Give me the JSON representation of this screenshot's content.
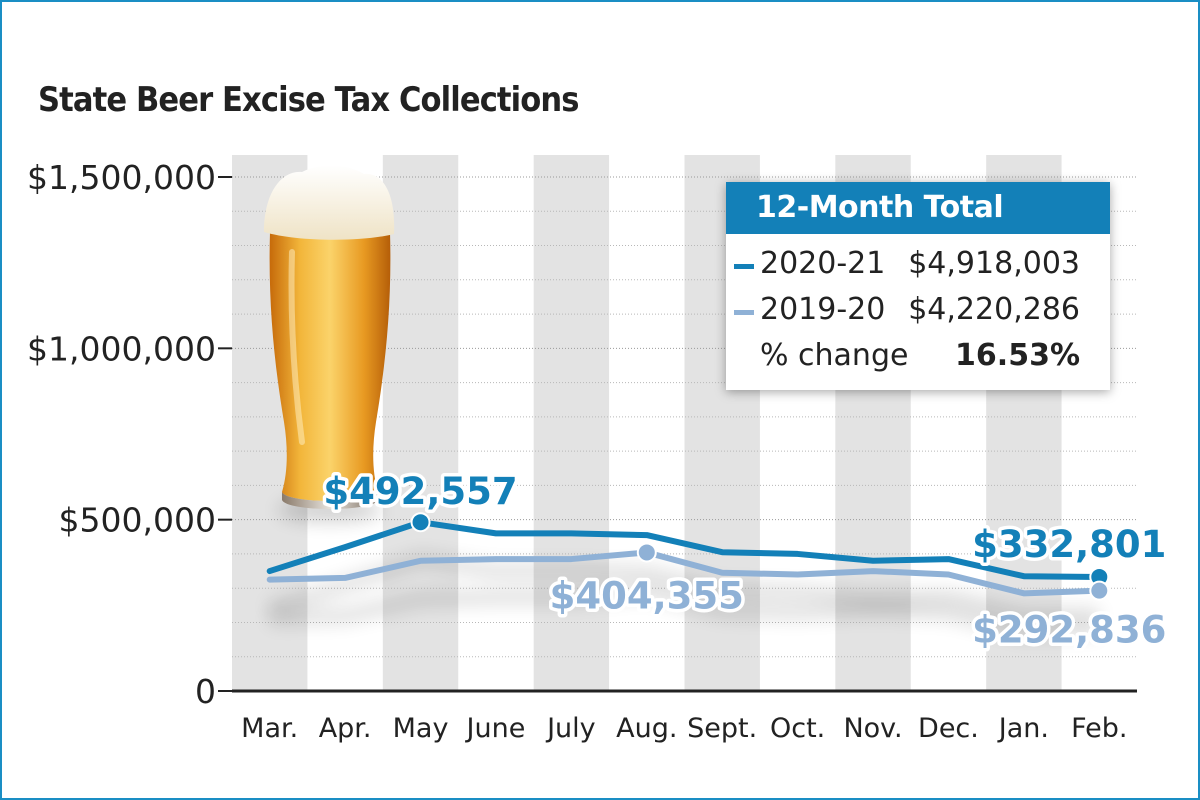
{
  "chart_data": {
    "type": "line",
    "title": "State Beer Excise Tax Collections",
    "categories": [
      "Mar.",
      "Apr.",
      "May",
      "June",
      "July",
      "Aug.",
      "Sept.",
      "Oct.",
      "Nov.",
      "Dec.",
      "Jan.",
      "Feb."
    ],
    "ylim": [
      0,
      1500000
    ],
    "yticks": [
      0,
      500000,
      1000000,
      1500000
    ],
    "ytick_labels": [
      "0",
      "$500,000",
      "$1,000,000",
      "$1,500,000"
    ],
    "series": [
      {
        "name": "2020-21",
        "color": "#1380b8",
        "values": [
          350000,
          420000,
          492557,
          460000,
          460000,
          455000,
          405000,
          400000,
          380000,
          385000,
          335000,
          332801
        ]
      },
      {
        "name": "2019-20",
        "color": "#8fb1d6",
        "values": [
          325000,
          330000,
          380000,
          385000,
          385000,
          404355,
          345000,
          340000,
          350000,
          340000,
          285000,
          292836
        ]
      }
    ],
    "annotations": [
      {
        "series": 0,
        "index": 2,
        "text": "$492,557"
      },
      {
        "series": 1,
        "index": 5,
        "text": "$404,355"
      },
      {
        "series": 0,
        "index": 11,
        "text": "$332,801"
      },
      {
        "series": 1,
        "index": 11,
        "text": "$292,836"
      }
    ],
    "legend": {
      "title": "12-Month Total",
      "rows": [
        {
          "label": "2020-21",
          "value": "$4,918,003"
        },
        {
          "label": "2019-20",
          "value": "$4,220,286"
        },
        {
          "label": "% change",
          "value": "16.53%"
        }
      ],
      "position": "top-right"
    }
  }
}
